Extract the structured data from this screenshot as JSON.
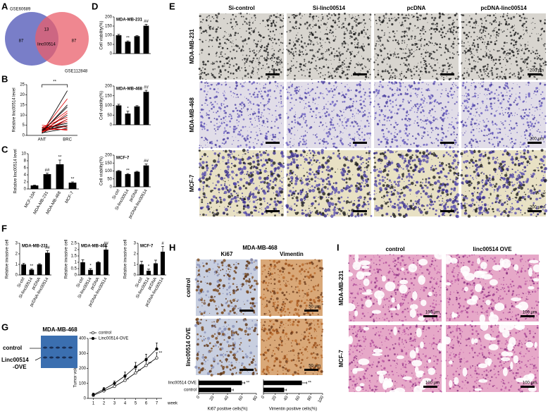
{
  "panel_labels": [
    "A",
    "B",
    "C",
    "D",
    "E",
    "F",
    "G",
    "H",
    "I"
  ],
  "chart_data": [
    {
      "type": "venn",
      "sets": [
        {
          "name": "GSE60689",
          "count": 87,
          "color": "#6a70c2"
        },
        {
          "name": "GSE112848",
          "count": 87,
          "color": "#ea5f6b"
        }
      ],
      "overlap": 13,
      "overlap_label": "linc00514"
    },
    {
      "type": "paired",
      "ylabel": "Relative linc00514 level",
      "categories": [
        "ANT",
        "BRC"
      ],
      "ylim": [
        0,
        25
      ],
      "yticks": [
        0,
        5,
        10,
        15,
        20,
        25
      ],
      "line_colors": [
        "#000000",
        "#e00000"
      ],
      "annotation": "**",
      "pairs": [
        [
          1,
          22
        ],
        [
          2,
          18
        ],
        [
          1.5,
          15
        ],
        [
          3,
          12
        ],
        [
          2,
          10
        ],
        [
          4,
          9
        ],
        [
          1,
          8
        ],
        [
          2.5,
          7
        ],
        [
          3.5,
          6
        ],
        [
          1.8,
          5
        ],
        [
          2.2,
          4.5
        ],
        [
          5,
          4
        ],
        [
          1.2,
          3.5
        ],
        [
          2.8,
          3
        ],
        [
          3,
          6
        ],
        [
          1.5,
          11
        ],
        [
          2,
          14
        ],
        [
          4,
          2.5
        ],
        [
          2.6,
          5
        ],
        [
          1.9,
          8
        ]
      ]
    },
    {
      "type": "bar",
      "ylabel": "Relative linc00514 level",
      "categories": [
        "MCF-10A",
        "MDA-MB-231",
        "MDA-MB-468",
        "MCF-7"
      ],
      "values": [
        1,
        4.2,
        7,
        1.8
      ],
      "errors": [
        0.1,
        0.3,
        1.2,
        0.2
      ],
      "annotations": [
        null,
        "##",
        "**",
        "**"
      ],
      "color": "#000000",
      "ylim": [
        0,
        10
      ],
      "yticks": [
        0,
        2,
        4,
        6,
        8,
        10
      ]
    },
    {
      "type": "bar",
      "title": "MDA-MB-231",
      "ylabel": "Cell viability(%)",
      "values": [
        100,
        65,
        95,
        152
      ],
      "errors": [
        5,
        4,
        3,
        8
      ],
      "annotations": [
        null,
        "**",
        null,
        "##"
      ],
      "color": "#000000",
      "ylim": [
        0,
        200
      ],
      "yticks": [
        0,
        50,
        100,
        150,
        200
      ]
    },
    {
      "type": "bar",
      "title": "MDA-MB-468",
      "ylabel": "Cell viability(%)",
      "values": [
        100,
        58,
        95,
        170
      ],
      "errors": [
        6,
        12,
        4,
        8
      ],
      "annotations": [
        null,
        "*",
        null,
        "##"
      ],
      "color": "#000000",
      "ylim": [
        0,
        200
      ],
      "yticks": [
        0,
        50,
        100,
        150,
        200
      ]
    },
    {
      "type": "bar",
      "title": "MCF-7",
      "ylabel": "Cell viability(%)",
      "categories": [
        "Si-ctrl",
        "Si-linc00514",
        "pcDNA",
        "pcDNA-linc00514"
      ],
      "values": [
        100,
        80,
        95,
        135
      ],
      "errors": [
        3,
        4,
        3,
        9
      ],
      "annotations": [
        null,
        "**",
        null,
        "##"
      ],
      "color": "#000000",
      "ylim": [
        0,
        200
      ],
      "yticks": [
        0,
        50,
        100,
        150,
        200
      ]
    },
    {
      "type": "bar",
      "title": "MDA-MB-231",
      "ylabel": "Relative invasive cell",
      "categories": [
        "Si-ctrl",
        "Si-linc00514",
        "pcDNA",
        "pcDNA-linc00514"
      ],
      "values": [
        1,
        0.5,
        1,
        2.1
      ],
      "errors": [
        0.1,
        0.08,
        0.07,
        0.2
      ],
      "annotations": [
        null,
        "**",
        null,
        "##"
      ],
      "color": "#000000",
      "ylim": [
        0,
        3
      ],
      "yticks": [
        0,
        1,
        2,
        3
      ]
    },
    {
      "type": "bar",
      "title": "MDA-MB-468",
      "ylabel": "Relative invasive cell",
      "categories": [
        "Si-ctrl",
        "Si-linc00514",
        "pcDNA",
        "pcDNA-linc00514"
      ],
      "values": [
        1,
        0.4,
        1,
        2
      ],
      "errors": [
        0.2,
        0.1,
        0.05,
        0.25
      ],
      "annotations": [
        null,
        "*",
        null,
        "##"
      ],
      "color": "#000000",
      "ylim": [
        0,
        2.5
      ],
      "yticks": [
        0,
        0.5,
        1,
        1.5,
        2,
        2.5
      ]
    },
    {
      "type": "bar",
      "title": "MCF-7",
      "ylabel": "Relative invasive cell",
      "categories": [
        "Si-ctrl",
        "Si-linc00514",
        "pcDNA",
        "pcDNA-linc00514"
      ],
      "values": [
        1,
        0.4,
        1.1,
        2.2
      ],
      "errors": [
        0.3,
        0.15,
        0.3,
        0.5
      ],
      "annotations": [
        null,
        "*",
        null,
        "#"
      ],
      "color": "#000000",
      "ylim": [
        0,
        3
      ],
      "yticks": [
        0,
        1,
        2,
        3
      ]
    },
    {
      "type": "line",
      "ylabel": "Tumor volume(mm³)",
      "xlabel": "week",
      "x": [
        1,
        2,
        3,
        4,
        5,
        6,
        7
      ],
      "xlim": [
        0.5,
        7.5
      ],
      "xticks": [
        1,
        2,
        3,
        4,
        5,
        6,
        7
      ],
      "ylim": [
        0,
        400
      ],
      "yticks": [
        0,
        100,
        200,
        300,
        400
      ],
      "series": [
        {
          "name": "control",
          "color": "#000000",
          "marker": "open",
          "values": [
            20,
            50,
            80,
            120,
            170,
            220,
            270
          ],
          "errors": [
            10,
            10,
            15,
            20,
            25,
            30,
            35
          ]
        },
        {
          "name": "Linc00514-OVE",
          "color": "#000000",
          "marker": "filled",
          "values": [
            25,
            60,
            100,
            150,
            210,
            260,
            330
          ],
          "errors": [
            10,
            12,
            15,
            25,
            30,
            35,
            40
          ],
          "annotations": [
            null,
            null,
            null,
            "*",
            "**",
            "**",
            "**"
          ]
        }
      ]
    },
    {
      "type": "hbar",
      "xlabel": "Ki67 positive cells(%)",
      "categories": [
        "linc00514 OVE",
        "control"
      ],
      "values": [
        60,
        45
      ],
      "errors": [
        4,
        3
      ],
      "annotations": [
        "**",
        null
      ],
      "color": "#000000",
      "xlim": [
        0,
        80
      ],
      "xticks": [
        0,
        20,
        40,
        60,
        80
      ]
    },
    {
      "type": "hbar",
      "xlabel": "Vimentin positive cells(%)",
      "values": [
        65,
        35
      ],
      "errors": [
        8,
        4
      ],
      "annotations": [
        "**",
        null
      ],
      "color": "#000000",
      "xlim": [
        0,
        100
      ],
      "xticks": [
        0,
        20,
        40,
        60,
        80,
        100
      ]
    }
  ],
  "image_panels": [
    {
      "columns": [
        "Si-control",
        "Si-linc00514",
        "pcDNA",
        "pcDNA-linc00514"
      ],
      "rows": [
        "MDA-MB-231",
        "MDA-MB-468",
        "MCF-7"
      ],
      "scale_label": "200 μm"
    },
    {
      "title": "MDA-MB-468",
      "lane_labels": [
        "control",
        "Linc00514",
        "-OVE"
      ]
    },
    {
      "title": "MDA-MB-468",
      "columns": [
        "Ki67",
        "Vimentin"
      ],
      "rows": [
        "control",
        "linc00514 OVE"
      ],
      "scale_label": "50 μm"
    },
    {
      "columns": [
        "control",
        "linc00514 OVE"
      ],
      "rows": [
        "MDA-MB-231",
        "MCF-7"
      ],
      "scale_label": "100 μm"
    }
  ]
}
